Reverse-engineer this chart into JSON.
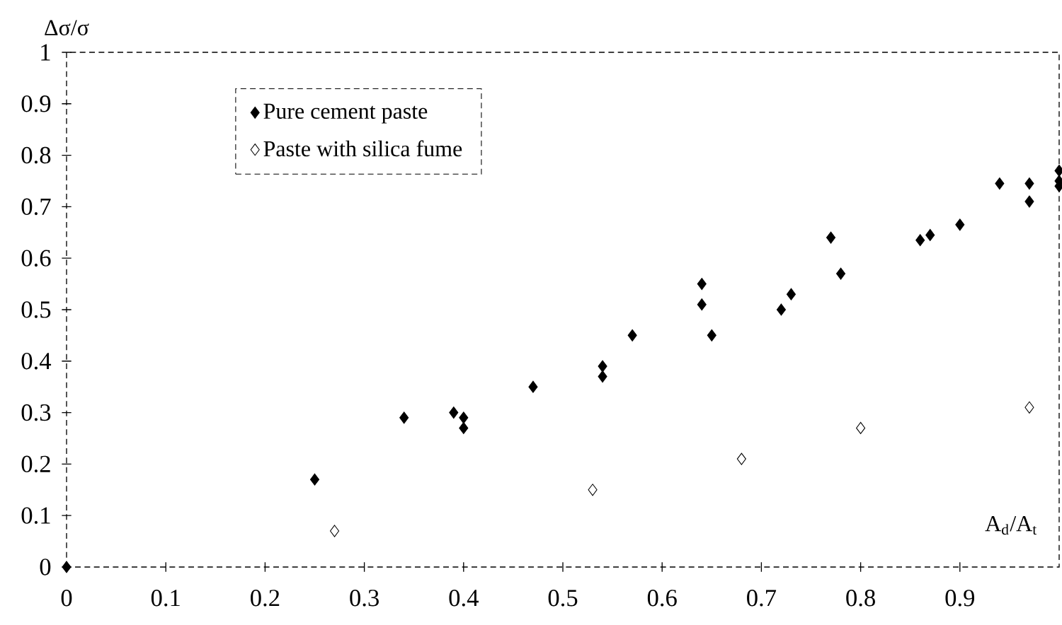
{
  "chart_data": {
    "type": "scatter",
    "xlabel": "A$_{d}$/A$_{t}$",
    "ylabel": "Δσ/σ",
    "xlim": [
      0,
      1
    ],
    "ylim": [
      0,
      1
    ],
    "xticks": [
      0,
      0.1,
      0.2,
      0.3,
      0.4,
      0.5,
      0.6,
      0.7,
      0.8,
      0.9
    ],
    "yticks": [
      0,
      0.1,
      0.2,
      0.3,
      0.4,
      0.5,
      0.6,
      0.7,
      0.8,
      0.9,
      1
    ],
    "grid": false,
    "legend": "top left",
    "marker": "diamond",
    "series": [
      {
        "name": "Pure cement paste",
        "color": "#000000",
        "x": [
          0,
          0.25,
          0.34,
          0.39,
          0.4,
          0.4,
          0.47,
          0.54,
          0.54,
          0.57,
          0.64,
          0.64,
          0.65,
          0.72,
          0.73,
          0.77,
          0.78,
          0.86,
          0.87,
          0.9,
          0.94,
          0.97,
          0.97,
          1.0,
          1.0,
          1.0
        ],
        "values": [
          0,
          0.17,
          0.29,
          0.3,
          0.29,
          0.27,
          0.35,
          0.39,
          0.37,
          0.45,
          0.55,
          0.51,
          0.45,
          0.5,
          0.53,
          0.64,
          0.57,
          0.635,
          0.645,
          0.665,
          0.745,
          0.745,
          0.71,
          0.77,
          0.75,
          0.74
        ]
      },
      {
        "name": "Paste with silica fume",
        "color": "#000000",
        "marker": "diamond-open",
        "x": [
          0.27,
          0.53,
          0.68,
          0.8,
          0.97
        ],
        "values": [
          0.07,
          0.15,
          0.21,
          0.27,
          0.31
        ]
      }
    ]
  }
}
